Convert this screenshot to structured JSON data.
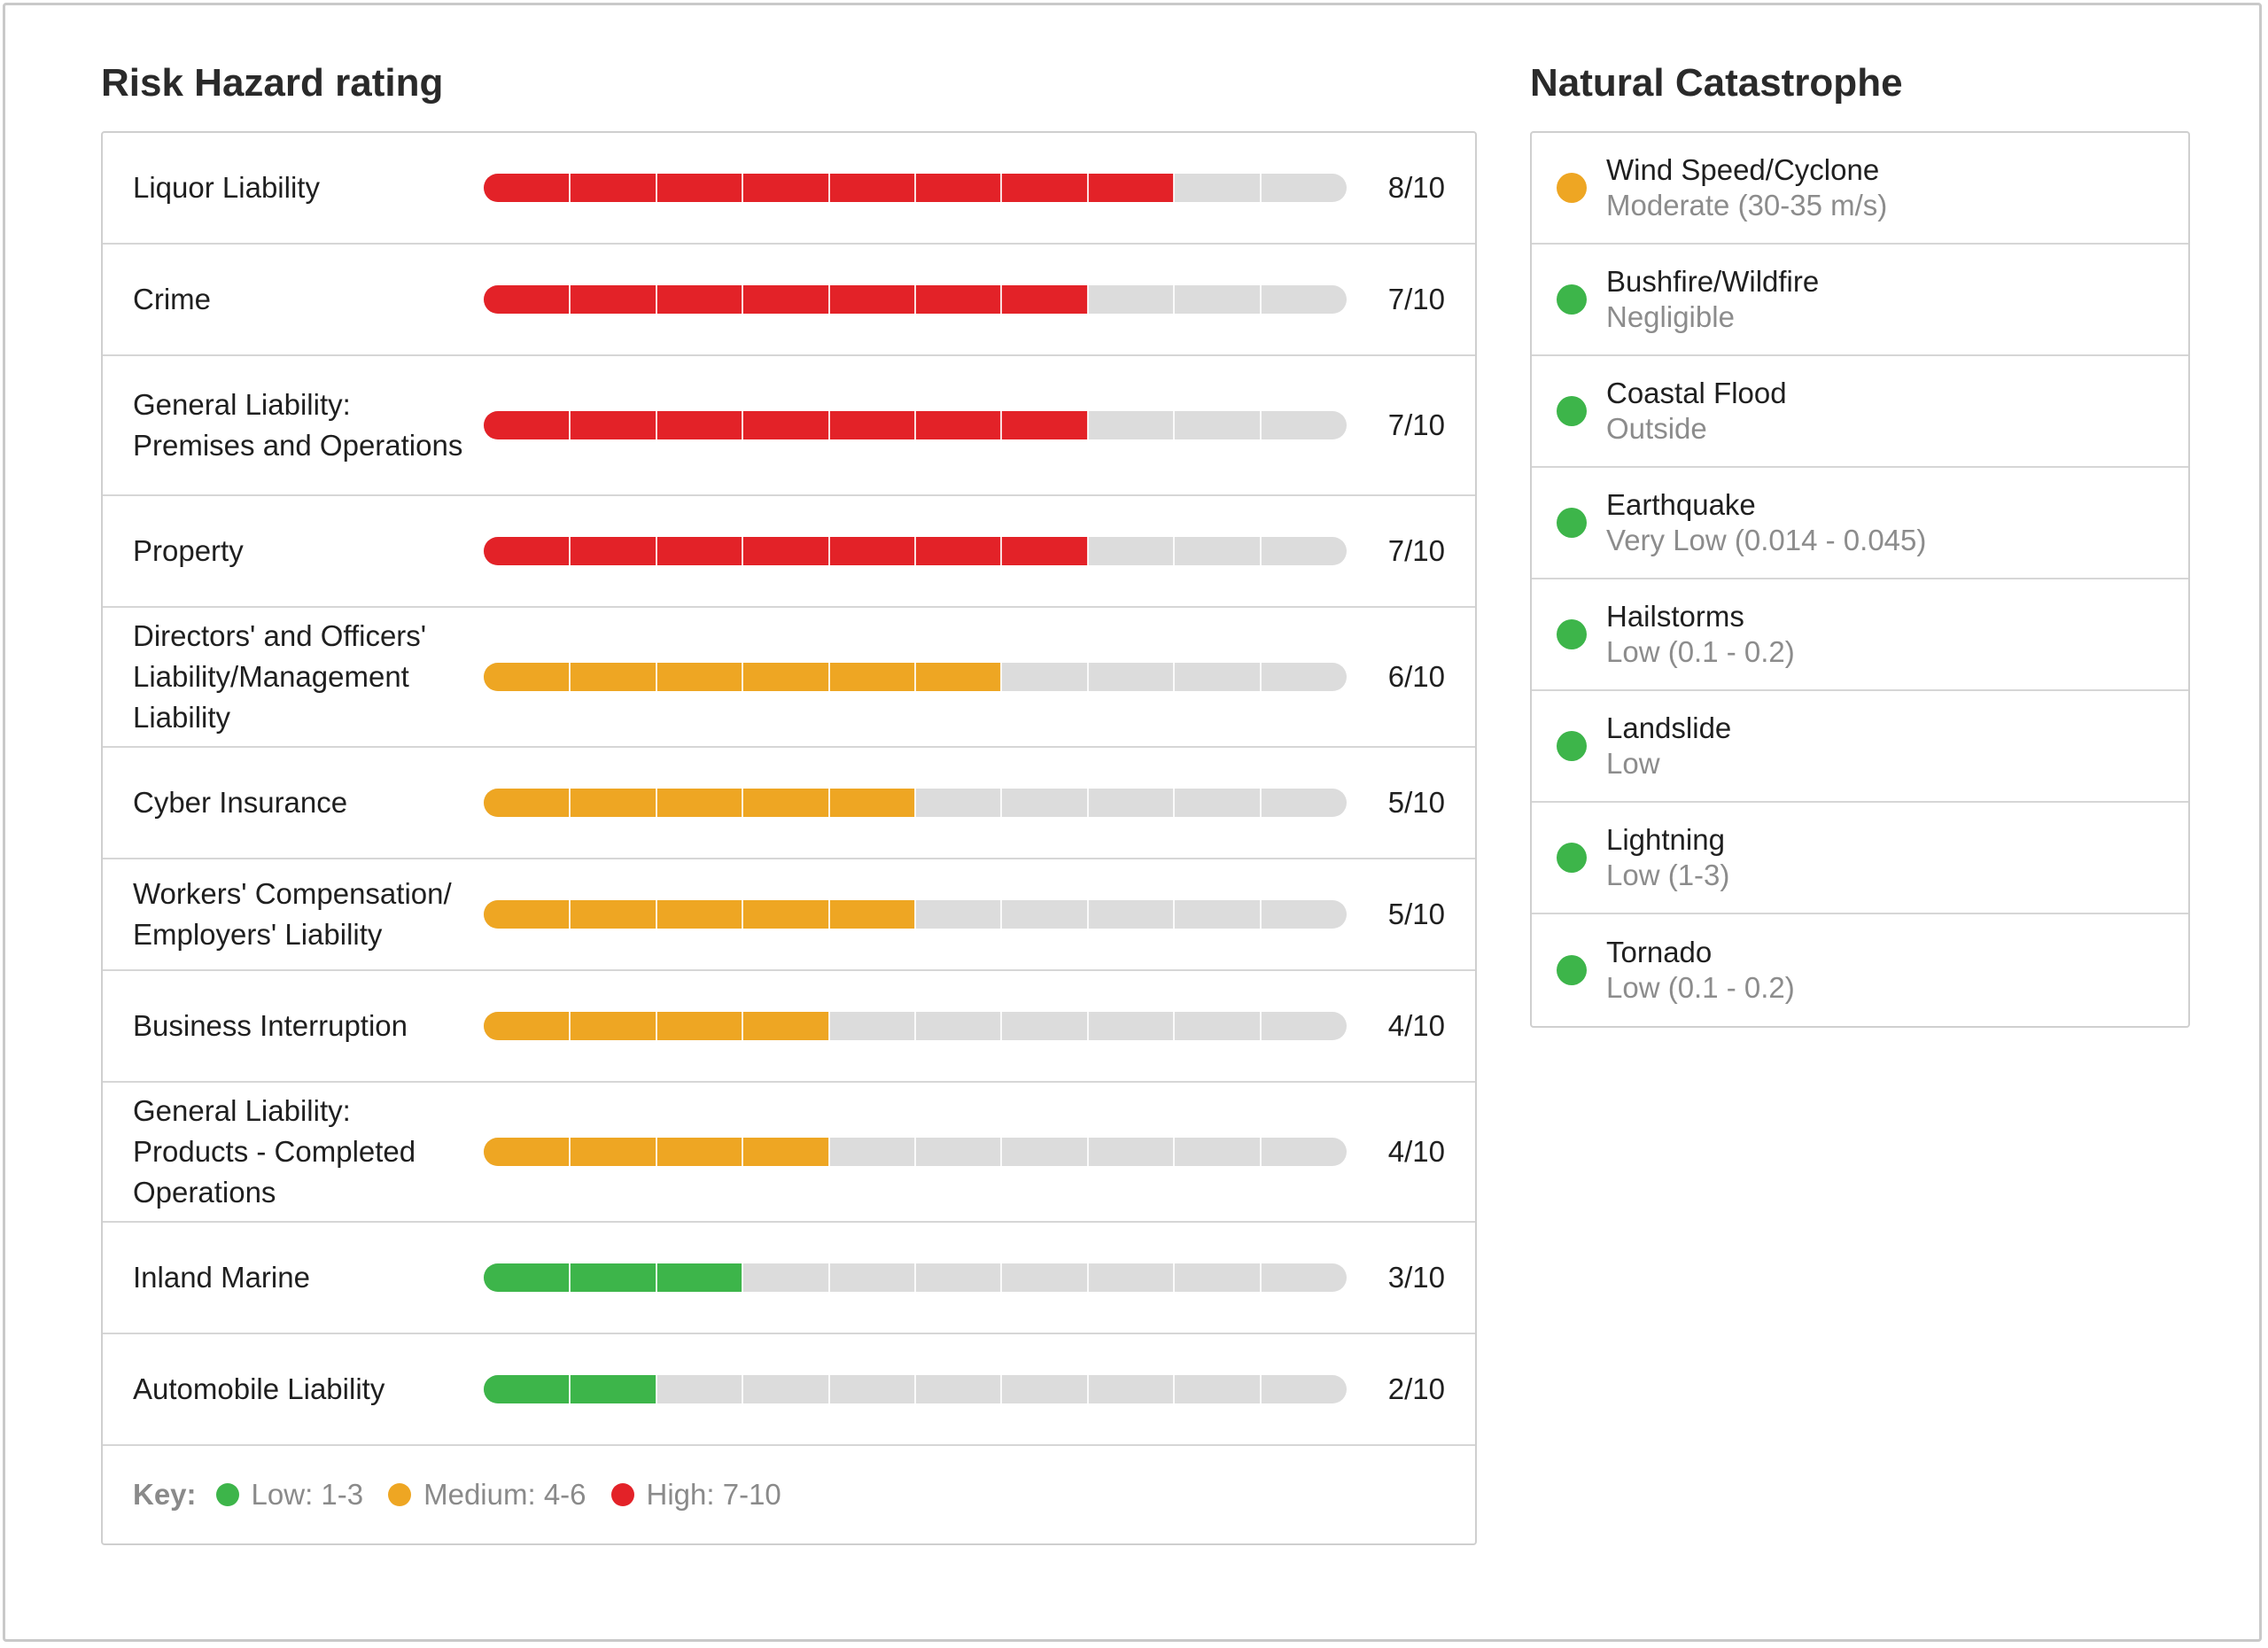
{
  "risk": {
    "title": "Risk Hazard rating",
    "max": 10,
    "items": [
      {
        "label": "Liquor Liability",
        "score": 8,
        "score_text": "8/10",
        "level": "high"
      },
      {
        "label": "Crime",
        "score": 7,
        "score_text": "7/10",
        "level": "high"
      },
      {
        "label": "General Liability: Premises and Operations",
        "score": 7,
        "score_text": "7/10",
        "level": "high"
      },
      {
        "label": "Property",
        "score": 7,
        "score_text": "7/10",
        "level": "high"
      },
      {
        "label": "Directors' and Officers' Liability/Management Liability",
        "score": 6,
        "score_text": "6/10",
        "level": "medium"
      },
      {
        "label": "Cyber Insurance",
        "score": 5,
        "score_text": "5/10",
        "level": "medium"
      },
      {
        "label": "Workers' Compensation/ Employers' Liability",
        "score": 5,
        "score_text": "5/10",
        "level": "medium"
      },
      {
        "label": "Business Interruption",
        "score": 4,
        "score_text": "4/10",
        "level": "medium"
      },
      {
        "label": "General Liability: Products - Completed Operations",
        "score": 4,
        "score_text": "4/10",
        "level": "medium"
      },
      {
        "label": "Inland Marine",
        "score": 3,
        "score_text": "3/10",
        "level": "low"
      },
      {
        "label": "Automobile Liability",
        "score": 2,
        "score_text": "2/10",
        "level": "low"
      }
    ],
    "key": {
      "title": "Key:",
      "items": [
        {
          "level": "low",
          "label": "Low: 1-3"
        },
        {
          "level": "medium",
          "label": "Medium: 4-6"
        },
        {
          "level": "high",
          "label": "High: 7-10"
        }
      ]
    }
  },
  "natural_catastrophe": {
    "title": "Natural Catastrophe",
    "items": [
      {
        "name": "Wind Speed/Cyclone",
        "level_text": "Moderate (30-35 m/s)",
        "level": "medium"
      },
      {
        "name": "Bushfire/Wildfire",
        "level_text": "Negligible",
        "level": "low"
      },
      {
        "name": "Coastal Flood",
        "level_text": "Outside",
        "level": "low"
      },
      {
        "name": "Earthquake",
        "level_text": "Very Low (0.014 - 0.045)",
        "level": "low"
      },
      {
        "name": "Hailstorms",
        "level_text": "Low (0.1 - 0.2)",
        "level": "low"
      },
      {
        "name": "Landslide",
        "level_text": "Low",
        "level": "low"
      },
      {
        "name": "Lightning",
        "level_text": "Low (1-3)",
        "level": "low"
      },
      {
        "name": "Tornado",
        "level_text": "Low (0.1 - 0.2)",
        "level": "low"
      }
    ]
  },
  "colors": {
    "high": "#e32228",
    "medium": "#eea623",
    "low": "#3db54a",
    "track": "#dcdcdc"
  }
}
